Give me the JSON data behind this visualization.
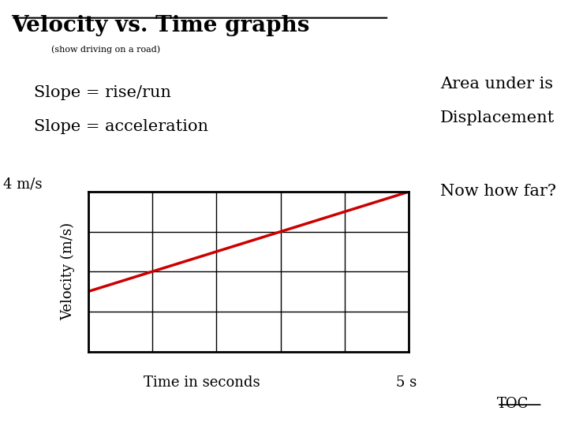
{
  "title": "Velocity vs. Time graphs",
  "subtitle": "(show driving on a road)",
  "slope_text1": "Slope = rise/run",
  "slope_text2": "Slope = acceleration",
  "area_text1": "Area under is",
  "area_text2": "Displacement",
  "now_text": "Now how far?",
  "toc_text": "TOC",
  "ylabel_text": "Velocity (m/s)",
  "xlabel_text": "Time in seconds",
  "x_end_label": "5 s",
  "y_start_label": "4 m/s",
  "line_x": [
    0,
    5
  ],
  "line_y_start": 1.5,
  "line_y_end": 4.0,
  "line_color": "#cc0000",
  "line_width": 2.5,
  "xlim": [
    0,
    5
  ],
  "ylim": [
    0,
    4
  ],
  "grid_color": "#000000",
  "background_color": "#ffffff",
  "xticks": [
    0,
    1,
    2,
    3,
    4,
    5
  ],
  "yticks": [
    0,
    1,
    2,
    3,
    4
  ]
}
